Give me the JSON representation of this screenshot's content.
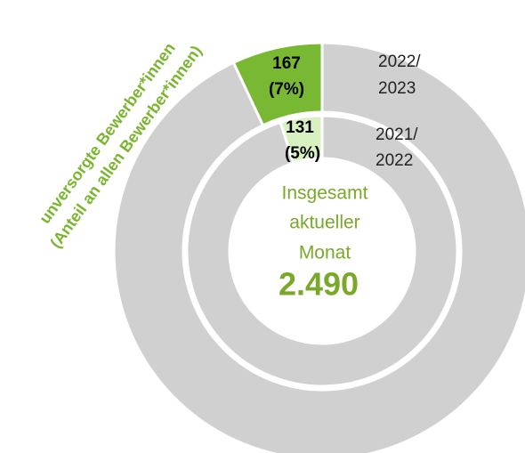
{
  "chart_data": {
    "type": "donut",
    "side_label_lines": [
      "unversorgte Bewerber*innen",
      "(Anteil an allen Bewerber*innen)"
    ],
    "center_lines": [
      "Insgesamt",
      "aktueller",
      "Monat"
    ],
    "center_value": "2.490",
    "rings": [
      {
        "name_lines": [
          "2022/",
          "2023"
        ],
        "count": 167,
        "percent": 7,
        "percent_label": "(7%)",
        "color": "#78b833",
        "rest_color": "#d0d0d0"
      },
      {
        "name_lines": [
          "2021/",
          "2022"
        ],
        "count": 131,
        "percent": 5,
        "percent_label": "(5%)",
        "color": "#d7f1c1",
        "rest_color": "#d0d0d0"
      }
    ],
    "ylim": [
      0,
      100
    ]
  }
}
